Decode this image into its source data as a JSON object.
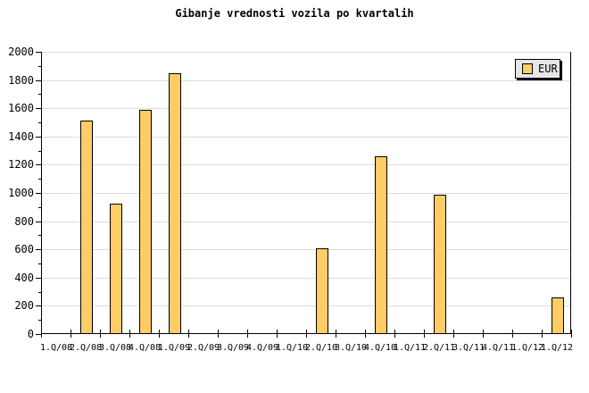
{
  "chart_data": {
    "type": "bar",
    "title": "Gibanje vrednosti vozila po kvartalih",
    "categories": [
      "1.Q/08",
      "2.Q/08",
      "3.Q/08",
      "4.Q/08",
      "1.Q/09",
      "2.Q/09",
      "3.Q/09",
      "4.Q/09",
      "1.Q/10",
      "2.Q/10",
      "3.Q/10",
      "4.Q/10",
      "1.Q/11",
      "2.Q/11",
      "3.Q/11",
      "4.Q/11",
      "1.Q/12",
      "1.Q/12"
    ],
    "series": [
      {
        "name": "EUR",
        "values": [
          0,
          1515,
          925,
          1590,
          1850,
          0,
          0,
          0,
          0,
          610,
          0,
          1260,
          0,
          990,
          0,
          0,
          0,
          260
        ]
      }
    ],
    "xlabel": "",
    "ylabel": "",
    "ylim": [
      0,
      2000
    ],
    "ytick_major": 200,
    "ytick_minor": 100,
    "ytick_labels": [
      "0",
      "200",
      "400",
      "600",
      "800",
      "1000",
      "1200",
      "1400",
      "1600",
      "1800",
      "2000"
    ],
    "grid": "horizontal",
    "legend_position": "top-right",
    "colors": {
      "bar_fill": "#FFCC66",
      "bar_border": "#000000",
      "gridline": "#DCDCDC",
      "axis": "#000000",
      "legend_fill": "#E6E6E6",
      "background": "#FFFFFF",
      "text": "#000000"
    }
  }
}
